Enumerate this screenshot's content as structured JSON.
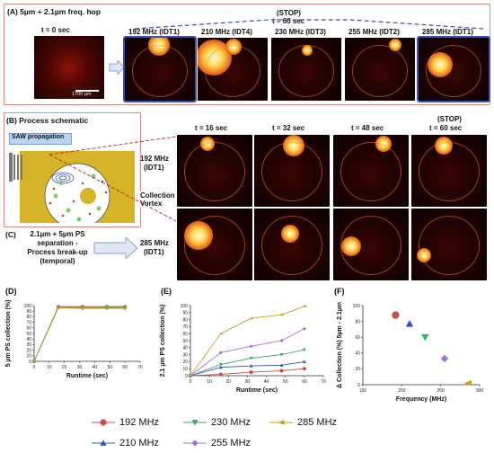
{
  "panelA": {
    "label": "(A) 5µm + 2.1µm freq. hop",
    "stop": "(STOP)",
    "t60": "t = 60 sec",
    "t0": "t = 0 sec",
    "scale": "1700 µm",
    "freqs": [
      "192 MHz (IDT1)",
      "210 MHz (IDT4)",
      "230 MHz (IDT3)",
      "255 MHz (IDT2)",
      "285 MHz (IDT1)"
    ]
  },
  "panelB": {
    "label": "(B) Process schematic",
    "saw": "SAW propagation",
    "vortex": "Collection Vortex",
    "times": [
      "t = 16 sec",
      "t = 32 sec",
      "t = 48 sec",
      "t = 60 sec"
    ],
    "stop": "(STOP)",
    "row1": [
      "192 MHz",
      "(IDT1)"
    ],
    "row2": [
      "285 MHz",
      "(IDT1)"
    ]
  },
  "panelC": {
    "label": "(C)",
    "lines": [
      "2.1µm + 5µm PS",
      "separation -",
      "Process break-up",
      "(temporal)"
    ]
  },
  "colors": {
    "c192": "#c0504d",
    "c210": "#2e54c4",
    "c230": "#3daa6b",
    "c255": "#a66be0",
    "c285": "#c8a11a"
  },
  "chart_data": [
    {
      "type": "line",
      "panel": "(D)",
      "xlabel": "Runtime (sec)",
      "ylabel": "5 µm PS collection (%)",
      "xlim": [
        0,
        70
      ],
      "ylim": [
        0,
        100
      ],
      "xticks": [
        "0",
        "10",
        "20",
        "30",
        "40",
        "50",
        "60",
        "70"
      ],
      "yticks": [
        "0",
        "10",
        "20",
        "30",
        "40",
        "50",
        "60",
        "70",
        "80",
        "90",
        "100"
      ],
      "x": [
        0,
        16,
        32,
        48,
        60
      ],
      "series": [
        {
          "name": "192 MHz",
          "values": [
            0,
            98,
            98,
            98,
            98
          ]
        },
        {
          "name": "210 MHz",
          "values": [
            0,
            97,
            97,
            97,
            97
          ]
        },
        {
          "name": "230 MHz",
          "values": [
            0,
            97,
            97,
            98,
            98
          ]
        },
        {
          "name": "255 MHz",
          "values": [
            0,
            96,
            95,
            95,
            95
          ]
        },
        {
          "name": "285 MHz",
          "values": [
            0,
            96,
            96,
            96,
            96
          ]
        }
      ]
    },
    {
      "type": "line",
      "panel": "(E)",
      "xlabel": "Runtime (sec)",
      "ylabel": "2.1 µm PS collection (%)",
      "xlim": [
        0,
        70
      ],
      "ylim": [
        0,
        100
      ],
      "xticks": [
        "0",
        "10",
        "20",
        "30",
        "40",
        "50",
        "60",
        "70"
      ],
      "yticks": [
        "0",
        "10",
        "20",
        "30",
        "40",
        "50",
        "60",
        "70",
        "80",
        "90",
        "100"
      ],
      "x": [
        0,
        16,
        32,
        48,
        60
      ],
      "series": [
        {
          "name": "192 MHz",
          "values": [
            0,
            2,
            5,
            7,
            10
          ]
        },
        {
          "name": "210 MHz",
          "values": [
            0,
            12,
            14,
            15,
            20
          ]
        },
        {
          "name": "230 MHz",
          "values": [
            0,
            16,
            25,
            30,
            37
          ]
        },
        {
          "name": "255 MHz",
          "values": [
            0,
            33,
            42,
            50,
            67
          ]
        },
        {
          "name": "285 MHz",
          "values": [
            0,
            60,
            82,
            87,
            99
          ]
        }
      ]
    },
    {
      "type": "scatter",
      "panel": "(F)",
      "xlabel": "Frequency (MHz)",
      "ylabel": "Δ Collection (%) 5µm - 2.1µm",
      "xlim": [
        150,
        300
      ],
      "ylim": [
        0,
        100
      ],
      "xticks": [
        "150",
        "200",
        "250",
        "300"
      ],
      "yticks": [
        "0",
        "20",
        "40",
        "60",
        "80",
        "100"
      ],
      "points": [
        {
          "name": "192 MHz",
          "x": 192,
          "y": 88
        },
        {
          "name": "210 MHz",
          "x": 210,
          "y": 77
        },
        {
          "name": "230 MHz",
          "x": 230,
          "y": 60
        },
        {
          "name": "255 MHz",
          "x": 255,
          "y": 33
        },
        {
          "name": "285 MHz",
          "x": 285,
          "y": 2
        }
      ]
    }
  ],
  "legend": [
    "192 MHz",
    "210 MHz",
    "230 MHz",
    "255 MHz",
    "285 MHz"
  ]
}
